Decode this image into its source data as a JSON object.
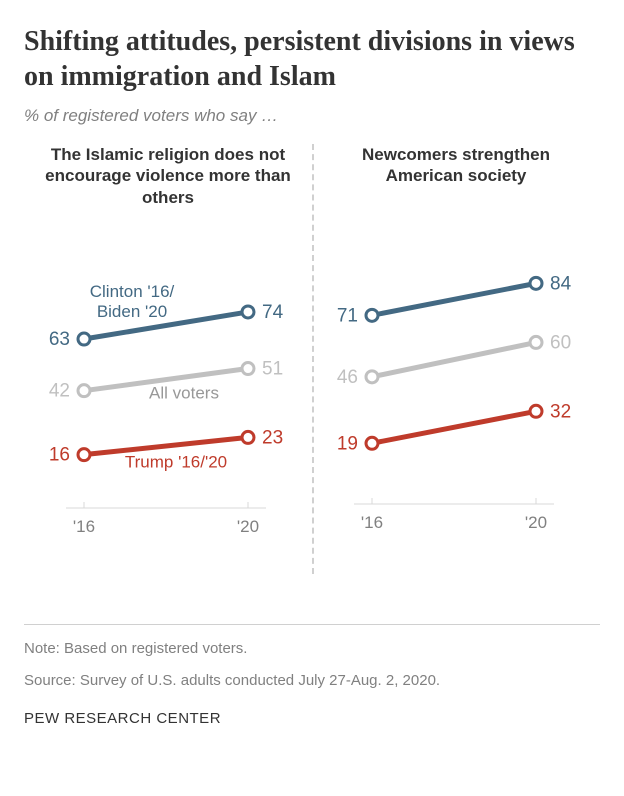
{
  "title": "Shifting attitudes, persistent divisions in views on immigration and Islam",
  "title_fontsize": 28,
  "subtitle": "% of registered voters who say …",
  "subtitle_fontsize": 17,
  "panels": [
    {
      "title": "The Islamic religion does not encourage violence more than others",
      "series": [
        {
          "name": "dem",
          "color": "#436983",
          "values": [
            63,
            74
          ],
          "label": "Clinton '16/\nBiden '20",
          "label_pos": "top-left"
        },
        {
          "name": "all",
          "color": "#c0c0c0",
          "values": [
            42,
            51
          ],
          "label": "All voters",
          "label_pos": "bottom-mid"
        },
        {
          "name": "gop",
          "color": "#bf3b2b",
          "values": [
            16,
            23
          ],
          "label": "Trump '16/'20",
          "label_pos": "bottom-mid"
        }
      ]
    },
    {
      "title": "Newcomers strengthen American society",
      "series": [
        {
          "name": "dem",
          "color": "#436983",
          "values": [
            71,
            84
          ],
          "label": "",
          "label_pos": ""
        },
        {
          "name": "all",
          "color": "#c0c0c0",
          "values": [
            46,
            60
          ],
          "label": "",
          "label_pos": ""
        },
        {
          "name": "gop",
          "color": "#bf3b2b",
          "values": [
            19,
            32
          ],
          "label": "",
          "label_pos": ""
        }
      ]
    }
  ],
  "xaxis": [
    "'16",
    "'20"
  ],
  "y_domain": [
    0,
    100
  ],
  "note1": "Note: Based on registered voters.",
  "note2": "Source: Survey of U.S. adults conducted July 27-Aug. 2, 2020.",
  "footer": "PEW RESEARCH CENTER",
  "panel_title_fontsize": 17,
  "value_fontsize": 19,
  "axis_fontsize": 17,
  "note_fontsize": 15,
  "footer_fontsize": 15,
  "marker_radius": 6,
  "line_width": 5
}
